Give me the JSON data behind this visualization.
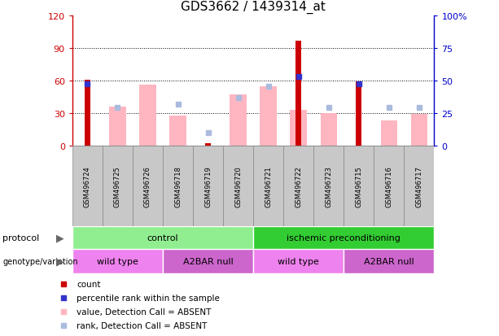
{
  "title": "GDS3662 / 1439314_at",
  "samples": [
    "GSM496724",
    "GSM496725",
    "GSM496726",
    "GSM496718",
    "GSM496719",
    "GSM496720",
    "GSM496721",
    "GSM496722",
    "GSM496723",
    "GSM496715",
    "GSM496716",
    "GSM496717"
  ],
  "red_bars": [
    61,
    0,
    0,
    0,
    2,
    0,
    0,
    97,
    0,
    59,
    0,
    0
  ],
  "pink_bars": [
    0,
    36,
    56,
    28,
    0,
    47,
    55,
    33,
    30,
    0,
    23,
    29
  ],
  "blue_squares": [
    57,
    0,
    0,
    0,
    0,
    0,
    0,
    64,
    0,
    57,
    0,
    0
  ],
  "light_blue_squares_val": [
    0,
    35,
    0,
    38,
    12,
    44,
    55,
    0,
    35,
    0,
    35,
    35
  ],
  "ylim_left": [
    0,
    120
  ],
  "ylim_right": [
    0,
    100
  ],
  "yticks_left": [
    0,
    30,
    60,
    90,
    120
  ],
  "yticks_right": [
    0,
    25,
    50,
    75,
    100
  ],
  "ytick_labels_right": [
    "0",
    "25",
    "50",
    "75",
    "100%"
  ],
  "protocol_groups": [
    {
      "label": "control",
      "start": 0,
      "end": 6,
      "color": "#90EE90"
    },
    {
      "label": "ischemic preconditioning",
      "start": 6,
      "end": 12,
      "color": "#32CD32"
    }
  ],
  "genotype_groups": [
    {
      "label": "wild type",
      "start": 0,
      "end": 3,
      "color": "#EE82EE"
    },
    {
      "label": "A2BAR null",
      "start": 3,
      "end": 6,
      "color": "#CC66CC"
    },
    {
      "label": "wild type",
      "start": 6,
      "end": 9,
      "color": "#EE82EE"
    },
    {
      "label": "A2BAR null",
      "start": 9,
      "end": 12,
      "color": "#CC66CC"
    }
  ],
  "red_color": "#CC0000",
  "pink_color": "#FFB6C1",
  "blue_color": "#3333CC",
  "light_blue_color": "#AABBDD",
  "left_axis_color": "#CC0000",
  "right_axis_color": "#0000CC",
  "tick_bg_color": "#C8C8C8",
  "cell_border_color": "#888888"
}
